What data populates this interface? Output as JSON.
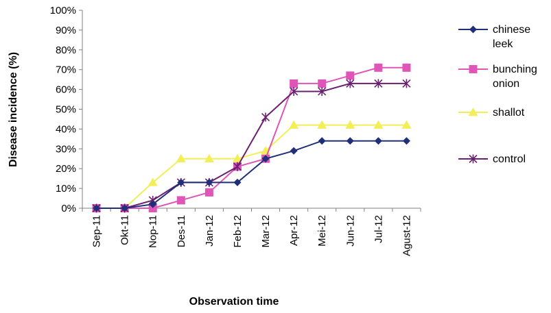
{
  "chart_data": {
    "type": "line",
    "title": "",
    "xlabel": "Observation time",
    "ylabel": "Disease incidence (%)",
    "ylim": [
      0,
      100
    ],
    "y_ticks": [
      0,
      10,
      20,
      30,
      40,
      50,
      60,
      70,
      80,
      90,
      100
    ],
    "y_tick_suffix": "%",
    "categories": [
      "Sep-11",
      "Okt-11",
      "Nop-11",
      "Des-11",
      "Jan-12",
      "Feb-12",
      "Mar-12",
      "Apr-12",
      "Mei-12",
      "Jun-12",
      "Jul-12",
      "Agust-12"
    ],
    "grid": false,
    "legend_position": "right",
    "series": [
      {
        "name": "chinese leek",
        "legend_lines": [
          "chinese",
          "leek"
        ],
        "color": "#1f2f7a",
        "marker": "diamond",
        "values": [
          0,
          0,
          2,
          13,
          13,
          13,
          25,
          29,
          34,
          34,
          34,
          34
        ]
      },
      {
        "name": "bunching onion",
        "legend_lines": [
          "bunching",
          "onion"
        ],
        "color": "#e055b8",
        "marker": "square",
        "values": [
          0,
          0,
          0,
          4,
          8,
          21,
          25,
          63,
          63,
          67,
          71,
          71
        ]
      },
      {
        "name": "shallot",
        "legend_lines": [
          "shallot"
        ],
        "color": "#f2ee55",
        "marker": "triangle",
        "values": [
          0,
          0,
          13,
          25,
          25,
          25,
          29,
          42,
          42,
          42,
          42,
          42
        ]
      },
      {
        "name": "control",
        "legend_lines": [
          "control"
        ],
        "color": "#6a2070",
        "marker": "asterisk",
        "values": [
          0,
          0,
          4,
          13,
          13,
          21,
          46,
          59,
          59,
          63,
          63,
          63
        ]
      }
    ]
  }
}
